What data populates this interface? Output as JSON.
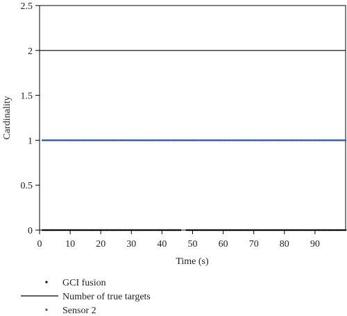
{
  "chart_data": {
    "type": "line",
    "title": "",
    "xlabel": "Time (s)",
    "ylabel": "Cardinality",
    "xlim": [
      0,
      100
    ],
    "ylim": [
      0,
      2.5
    ],
    "x_ticks": [
      0,
      10,
      20,
      30,
      40,
      50,
      60,
      70,
      80,
      90
    ],
    "x_tick_labels": [
      "0",
      "10",
      "20",
      "30",
      "40",
      "50",
      "60",
      "70",
      "80",
      "90"
    ],
    "y_ticks": [
      0,
      0.5,
      1,
      1.5,
      2,
      2.5
    ],
    "y_tick_labels": [
      "0",
      "0.5",
      "1",
      "1.5",
      "2",
      "2.5"
    ],
    "grid": false,
    "legend_position": "bottom",
    "series": [
      {
        "name": "GCI fusion",
        "style": "dots",
        "color": "#000000",
        "x": [
          1,
          2,
          3,
          4,
          5,
          6,
          7,
          8,
          9,
          10,
          11,
          12,
          13,
          14,
          15,
          16,
          17,
          18,
          19,
          20,
          21,
          22,
          23,
          24,
          25,
          26,
          27,
          28,
          29,
          30,
          31,
          32,
          33,
          34,
          35,
          36,
          37,
          38,
          39,
          40,
          41,
          42,
          43,
          44,
          45,
          46,
          48,
          49,
          50,
          51,
          52,
          53,
          54,
          55,
          56,
          57,
          58,
          59,
          60,
          61,
          62,
          63,
          64,
          65,
          66,
          67,
          68,
          69,
          70,
          71,
          72,
          73,
          74,
          75,
          76,
          77,
          78,
          79,
          80,
          81,
          82,
          83,
          84,
          85,
          86,
          87,
          88,
          89,
          90,
          91,
          92,
          93,
          94,
          95,
          96,
          97,
          98,
          99,
          100
        ],
        "y_constant": 0
      },
      {
        "name": "Number of true targets",
        "style": "line",
        "color": "#000000",
        "x": [
          0,
          100
        ],
        "y": [
          2,
          2
        ]
      },
      {
        "name": "Sensor 2",
        "style": "dots",
        "color": "#1f4fbf",
        "x": [
          1,
          2,
          3,
          4,
          5,
          6,
          7,
          8,
          9,
          10,
          11,
          12,
          13,
          14,
          15,
          16,
          17,
          18,
          19,
          20,
          21,
          22,
          23,
          24,
          25,
          26,
          27,
          28,
          29,
          30,
          31,
          32,
          33,
          34,
          35,
          36,
          37,
          38,
          39,
          40,
          41,
          42,
          43,
          44,
          45,
          46,
          47,
          48,
          49,
          50,
          51,
          52,
          53,
          54,
          55,
          56,
          57,
          58,
          59,
          60,
          61,
          62,
          63,
          64,
          65,
          66,
          67,
          68,
          69,
          70,
          71,
          72,
          73,
          74,
          75,
          76,
          77,
          78,
          79,
          80,
          81,
          82,
          83,
          84,
          85,
          86,
          87,
          88,
          89,
          90,
          91,
          92,
          93,
          94,
          95,
          96,
          97,
          98,
          99,
          100
        ],
        "y_constant": 1
      }
    ]
  }
}
